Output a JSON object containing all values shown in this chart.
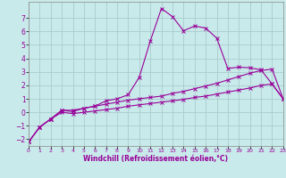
{
  "xlabel": "Windchill (Refroidissement éolien,°C)",
  "bg_color": "#c8eaea",
  "grid_color": "#aacccc",
  "line_color": "#990099",
  "xlim": [
    0,
    23
  ],
  "ylim": [
    -2.5,
    8.2
  ],
  "xticks": [
    0,
    1,
    2,
    3,
    4,
    5,
    6,
    7,
    8,
    9,
    10,
    11,
    12,
    13,
    14,
    15,
    16,
    17,
    18,
    19,
    20,
    21,
    22,
    23
  ],
  "yticks": [
    -2,
    -1,
    0,
    1,
    2,
    3,
    4,
    5,
    6,
    7
  ],
  "series1_x": [
    0,
    1,
    2,
    3,
    4,
    5,
    6,
    7,
    8,
    9,
    10,
    11,
    12,
    13,
    14,
    15,
    16,
    17,
    18,
    19,
    20,
    21,
    22,
    23
  ],
  "series1_y": [
    -2.2,
    -1.1,
    -0.5,
    0.15,
    0.05,
    0.3,
    0.45,
    0.85,
    1.0,
    1.3,
    2.6,
    5.3,
    7.7,
    7.1,
    6.05,
    6.4,
    6.25,
    5.5,
    3.25,
    3.35,
    3.3,
    3.15,
    2.1,
    1.0
  ],
  "series2_x": [
    0,
    1,
    2,
    3,
    4,
    5,
    6,
    7,
    8,
    9,
    10,
    11,
    12,
    13,
    14,
    15,
    16,
    17,
    18,
    19,
    20,
    21,
    22,
    23
  ],
  "series2_y": [
    -2.2,
    -1.1,
    -0.5,
    0.15,
    0.15,
    0.3,
    0.45,
    0.6,
    0.75,
    0.9,
    1.0,
    1.1,
    1.2,
    1.4,
    1.55,
    1.75,
    1.95,
    2.15,
    2.4,
    2.65,
    2.9,
    3.1,
    3.2,
    1.0
  ],
  "series3_x": [
    0,
    1,
    2,
    3,
    4,
    5,
    6,
    7,
    8,
    9,
    10,
    11,
    12,
    13,
    14,
    15,
    16,
    17,
    18,
    19,
    20,
    21,
    22,
    23
  ],
  "series3_y": [
    -2.2,
    -1.1,
    -0.5,
    0.0,
    -0.1,
    0.0,
    0.1,
    0.2,
    0.3,
    0.45,
    0.55,
    0.65,
    0.75,
    0.85,
    0.95,
    1.1,
    1.2,
    1.35,
    1.5,
    1.65,
    1.8,
    2.0,
    2.1,
    1.0
  ],
  "xlabel_fontsize": 5.5,
  "tick_fontsize_x": 4.5,
  "tick_fontsize_y": 5.5,
  "linewidth": 0.8,
  "markersize": 2.5,
  "markeredgewidth": 0.7
}
